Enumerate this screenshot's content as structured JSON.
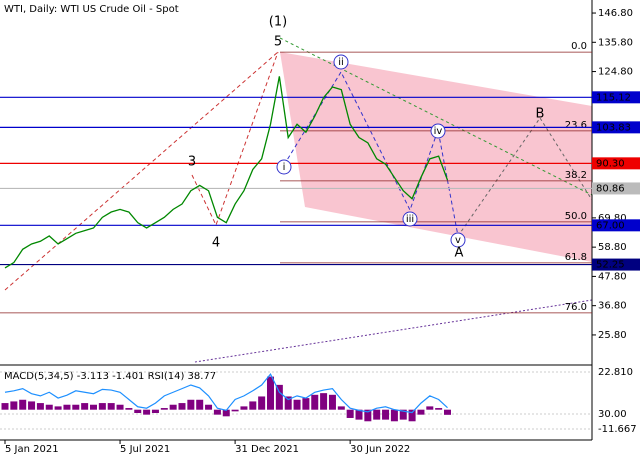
{
  "chart_data": {
    "type": "line",
    "title": "WTI, Daily:  WTI US Crude Oil - Spot",
    "categories": [
      "5 Jan 2021",
      null,
      null,
      null,
      null,
      null,
      null,
      null,
      null,
      null,
      null,
      null,
      null,
      "5 Jul 2021",
      null,
      null,
      null,
      null,
      null,
      null,
      null,
      null,
      null,
      null,
      null,
      null,
      "31 Dec 2021",
      null,
      null,
      null,
      null,
      null,
      null,
      null,
      null,
      null,
      null,
      null,
      null,
      "30 Jun 2022",
      null,
      null,
      null,
      null,
      null,
      null,
      null,
      null,
      null,
      null,
      null
    ],
    "series": [
      {
        "color": "#008800",
        "values": [
          51,
          53,
          58,
          60,
          61,
          63,
          60,
          62,
          64,
          65,
          66,
          70,
          72,
          73,
          72,
          68,
          66,
          68,
          70,
          73,
          75,
          80,
          82,
          80,
          70,
          68,
          75,
          80,
          88,
          92,
          105,
          123,
          100,
          105,
          102,
          108,
          115,
          119,
          118,
          105,
          100,
          98,
          92,
          90,
          85,
          80,
          77,
          85,
          92,
          93,
          84
        ]
      }
    ],
    "ylim": [
      14.5,
      151.7
    ],
    "yticks": [
      {
        "value": 146.8,
        "label": "146.80"
      },
      {
        "value": 135.8,
        "label": "135.80"
      },
      {
        "value": 124.8,
        "label": "124.80"
      },
      {
        "value": 69.8,
        "label": "69.80"
      },
      {
        "value": 58.8,
        "label": "58.80"
      },
      {
        "value": 47.8,
        "label": "47.80"
      },
      {
        "value": 36.8,
        "label": "36.80"
      },
      {
        "value": 25.8,
        "label": "25.80"
      }
    ],
    "levels": [
      {
        "value": 115.12,
        "label": "115.12",
        "color": "#0000cc"
      },
      {
        "value": 103.83,
        "label": "103.83",
        "color": "#0000cc"
      },
      {
        "value": 90.3,
        "label": "90.30",
        "color": "#ee0000"
      },
      {
        "value": 80.86,
        "label": "80.86",
        "color": "#bbbbbb"
      },
      {
        "value": 67,
        "label": "67.00",
        "color": "#0000cc"
      },
      {
        "value": 52.25,
        "label": "52.25",
        "color": "#000080"
      }
    ],
    "fib_levels": [
      {
        "label": "0.0",
        "value": 132.1
      },
      {
        "label": "23.6",
        "value": 102.5
      },
      {
        "label": "38.2",
        "value": 83.7
      },
      {
        "label": "50.0",
        "value": 68.3
      },
      {
        "label": "61.8",
        "value": 52.9
      },
      {
        "label": "76.0",
        "value": 34.1
      }
    ],
    "waves": [
      "(1)",
      "5",
      "3",
      "4",
      "i",
      "ii",
      "iii",
      "iv",
      "v",
      "B",
      "A"
    ],
    "indicator": {
      "label": "MACD(5,34,5) -3.113 -1.401 RSI(14) 38.77",
      "macd_color": "#800080",
      "rsi_color": "#1e90ff",
      "macd": [
        4,
        5,
        6,
        5,
        4,
        3,
        2,
        3,
        3,
        4,
        3,
        4,
        4,
        3,
        1,
        -2,
        -3,
        -2,
        1,
        3,
        4,
        6,
        6,
        3,
        -3,
        -4,
        -1,
        2,
        5,
        8,
        20,
        15,
        8,
        6,
        7,
        9,
        10,
        9,
        2,
        -5,
        -6,
        -7,
        -6,
        -6,
        -7,
        -6,
        -7,
        -3,
        2,
        1,
        -3.1
      ],
      "rsi": [
        60,
        62,
        65,
        58,
        55,
        60,
        52,
        56,
        62,
        60,
        58,
        64,
        63,
        60,
        50,
        40,
        38,
        45,
        55,
        60,
        65,
        70,
        66,
        55,
        38,
        35,
        50,
        55,
        62,
        70,
        85,
        60,
        50,
        55,
        52,
        60,
        63,
        65,
        50,
        38,
        35,
        33,
        38,
        40,
        36,
        34,
        32,
        45,
        55,
        50,
        38.77
      ],
      "ylim": [
        -17.1,
        26.4
      ],
      "yticks": [
        {
          "value": 22.81,
          "label": "22.810"
        },
        {
          "value": -11.667,
          "label": "-11.667"
        }
      ],
      "rsi_ylim": [
        -3.1,
        96.2
      ],
      "rsi_yticks": [
        {
          "value": 30,
          "label": "30.00"
        }
      ]
    }
  }
}
